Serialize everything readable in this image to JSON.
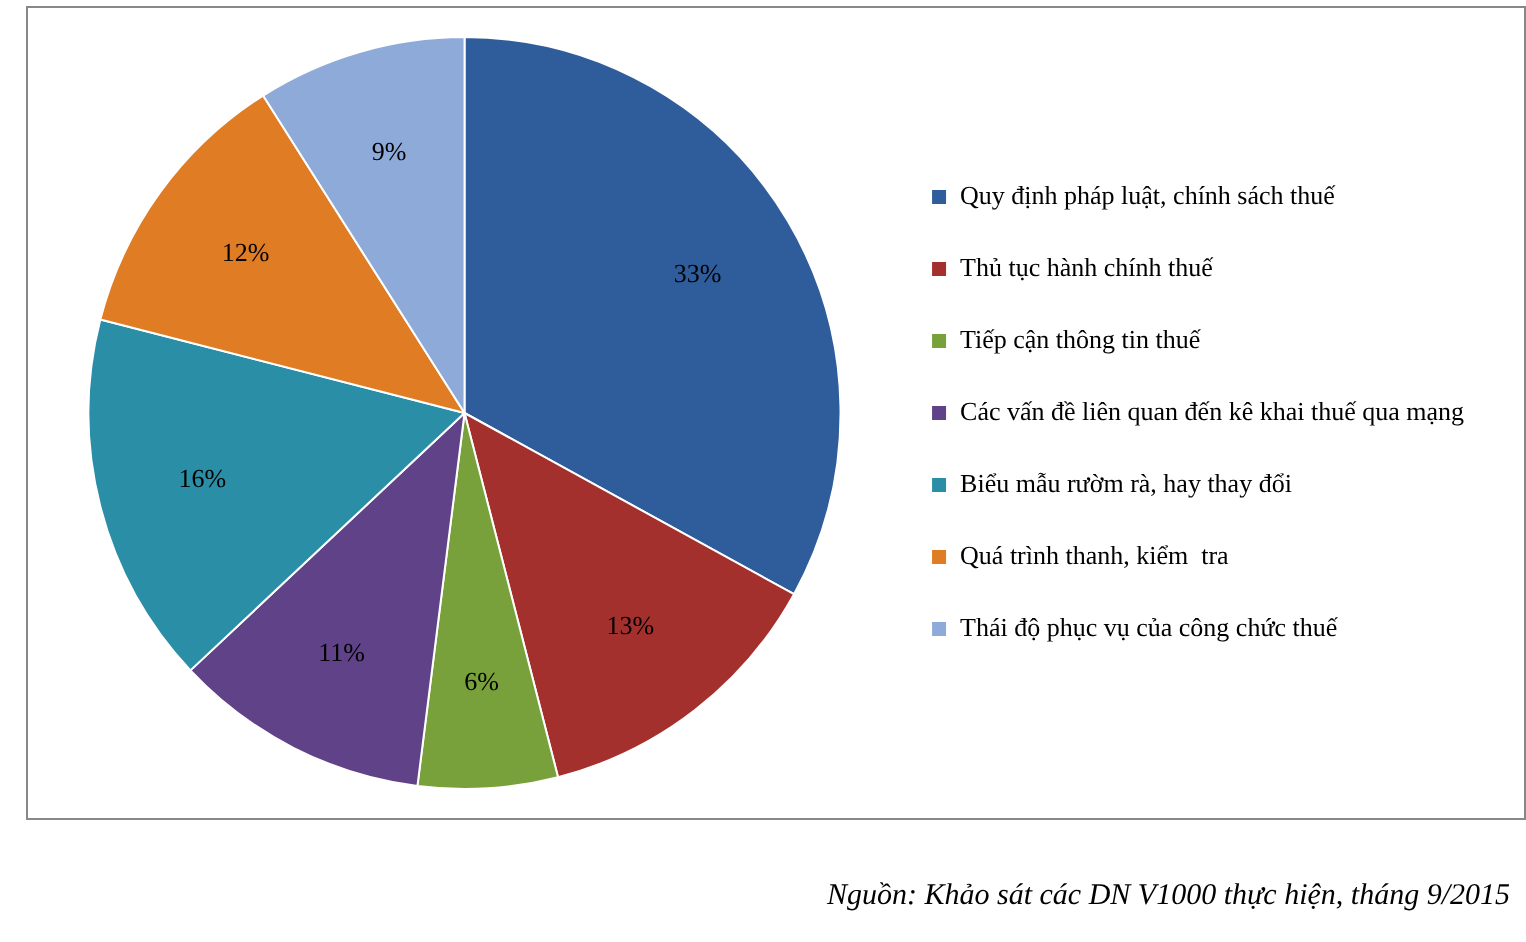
{
  "chart_data": {
    "type": "pie",
    "categories": [
      "Quy định pháp luật, chính sách thuế",
      "Thủ tục hành chính thuế",
      "Tiếp cận thông tin thuế",
      "Các vấn đề liên quan đến kê khai thuế qua mạng",
      "Biểu mẫu rườm rà, hay thay đổi",
      "Quá trình thanh, kiểm  tra",
      "Thái độ phục vụ của công chức thuế"
    ],
    "values": [
      33,
      13,
      6,
      11,
      16,
      12,
      9
    ],
    "colors": [
      "#2f5d9b",
      "#a3302d",
      "#78a13b",
      "#5f4287",
      "#2b8ea7",
      "#e07c24",
      "#8eaad8"
    ],
    "value_labels": [
      "33%",
      "13%",
      "6%",
      "11%",
      "16%",
      "12%",
      "9%"
    ],
    "legend": "right",
    "annotations": [
      "Nguồn: Khảo sát các DN V1000 thực hiện, tháng 9/2015"
    ]
  }
}
